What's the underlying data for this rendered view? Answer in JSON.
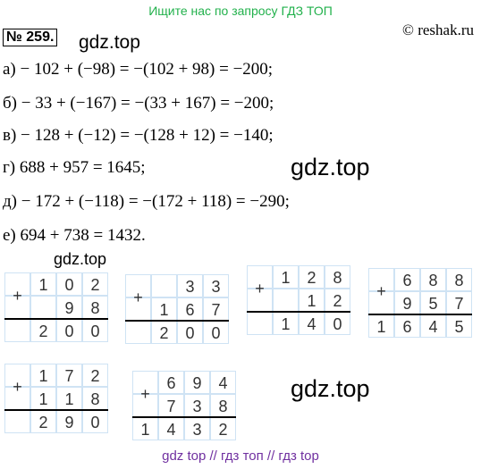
{
  "header": {
    "banner": "Ищите нас по запросу ГДЗ ТОП",
    "source": "© reshak.ru"
  },
  "problem_number": "№ 259.",
  "watermarks": [
    "gdz.top",
    "gdz.top",
    "gdz.top",
    "gdz.top"
  ],
  "lines": [
    "а) − 102 + (−98) = −(102 + 98) = −200;",
    "б) − 33 + (−167) = −(33 + 167) = −200;",
    "в) − 128 + (−12) = −(128 + 12) = −140;",
    "г) 688 + 957 = 1645;",
    "д) − 172 + (−118) = −(172 + 118) = −290;",
    "е) 694 + 738 = 1432."
  ],
  "grids": [
    {
      "sign": "+",
      "rows": [
        [
          "1",
          "0",
          "2"
        ],
        [
          "9",
          "8"
        ],
        [
          "2",
          "0",
          "0"
        ]
      ]
    },
    {
      "sign": "+",
      "rows": [
        [
          "3",
          "3"
        ],
        [
          "1",
          "6",
          "7"
        ],
        [
          "2",
          "0",
          "0"
        ]
      ]
    },
    {
      "sign": "+",
      "rows": [
        [
          "1",
          "2",
          "8"
        ],
        [
          "1",
          "2"
        ],
        [
          "1",
          "4",
          "0"
        ]
      ]
    },
    {
      "sign": "+",
      "rows": [
        [
          "6",
          "8",
          "8"
        ],
        [
          "9",
          "5",
          "7"
        ],
        [
          "1",
          "6",
          "4",
          "5"
        ]
      ]
    },
    {
      "sign": "+",
      "rows": [
        [
          "1",
          "7",
          "2"
        ],
        [
          "1",
          "1",
          "8"
        ],
        [
          "2",
          "9",
          "0"
        ]
      ]
    },
    {
      "sign": "+",
      "rows": [
        [
          "6",
          "9",
          "4"
        ],
        [
          "7",
          "3",
          "8"
        ],
        [
          "1",
          "4",
          "3",
          "2"
        ]
      ]
    }
  ],
  "footer": "gdz top  //  гдз топ  //  гдз top"
}
